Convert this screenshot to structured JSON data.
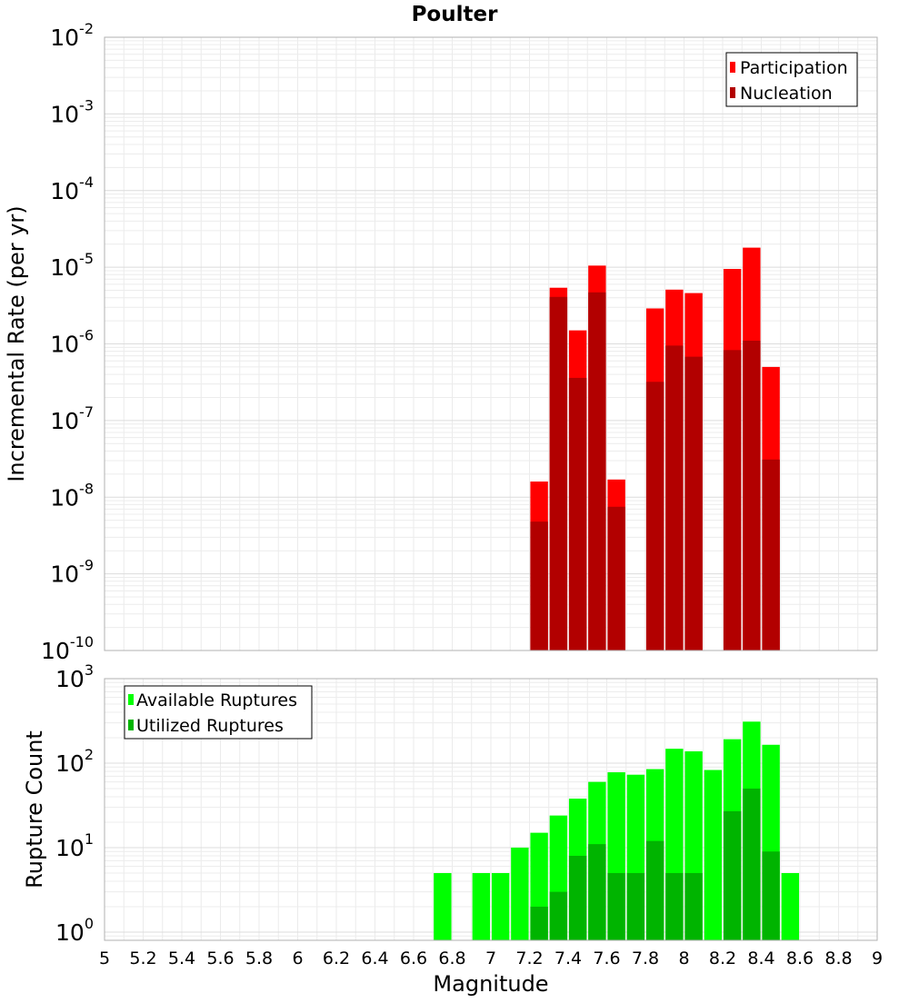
{
  "chart_data": [
    {
      "type": "bar",
      "title": "Poulter",
      "xlabel": "",
      "ylabel": "Incremental Rate (per yr)",
      "yscale": "log",
      "xlim": [
        5,
        9
      ],
      "ylim": [
        1e-10,
        0.01
      ],
      "y_tick_exponents": [
        -10,
        -9,
        -8,
        -7,
        -6,
        -5,
        -4,
        -3,
        -2
      ],
      "grid": true,
      "legend_position": "top-right",
      "series": [
        {
          "name": "Participation",
          "color": "#ff0000",
          "x": [
            7.25,
            7.35,
            7.45,
            7.55,
            7.65,
            7.85,
            7.95,
            8.05,
            8.25,
            8.35,
            8.45
          ],
          "values": [
            1.6e-08,
            5.4e-06,
            1.5e-06,
            1.05e-05,
            1.7e-08,
            2.9e-06,
            5.1e-06,
            4.6e-06,
            9.5e-06,
            1.8e-05,
            5e-07
          ]
        },
        {
          "name": "Nucleation",
          "color": "#b20000",
          "x": [
            7.25,
            7.35,
            7.45,
            7.55,
            7.65,
            7.85,
            7.95,
            8.05,
            8.25,
            8.35,
            8.45
          ],
          "values": [
            4.8e-09,
            4.1e-06,
            3.6e-07,
            4.7e-06,
            7.5e-09,
            3.2e-07,
            9.5e-07,
            6.8e-07,
            8.3e-07,
            1.1e-06,
            3.1e-08
          ]
        }
      ]
    },
    {
      "type": "bar",
      "title": "",
      "xlabel": "Magnitude",
      "ylabel": "Rupture Count",
      "yscale": "log",
      "xlim": [
        5,
        9
      ],
      "ylim": [
        0.8,
        1000
      ],
      "y_tick_exponents": [
        0,
        1,
        2,
        3
      ],
      "x_ticks": [
        "5",
        "5.2",
        "5.4",
        "5.6",
        "5.8",
        "6",
        "6.2",
        "6.4",
        "6.6",
        "6.8",
        "7",
        "7.2",
        "7.4",
        "7.6",
        "7.8",
        "8",
        "8.2",
        "8.4",
        "8.6",
        "8.8",
        "9"
      ],
      "grid": true,
      "legend_position": "top-left",
      "series": [
        {
          "name": "Available Ruptures",
          "color": "#00ff00",
          "x": [
            6.75,
            6.95,
            7.05,
            7.15,
            7.25,
            7.35,
            7.45,
            7.55,
            7.65,
            7.75,
            7.85,
            7.95,
            8.05,
            8.15,
            8.25,
            8.35,
            8.45,
            8.55
          ],
          "values": [
            5,
            5,
            5,
            10,
            15,
            24,
            38,
            60,
            78,
            73,
            85,
            148,
            138,
            83,
            192,
            310,
            165,
            5
          ]
        },
        {
          "name": "Utilized Ruptures",
          "color": "#00b400",
          "x": [
            7.25,
            7.35,
            7.45,
            7.55,
            7.65,
            7.75,
            7.85,
            7.95,
            8.05,
            8.25,
            8.35,
            8.45
          ],
          "values": [
            2,
            3,
            8,
            11,
            5,
            5,
            12,
            5,
            5,
            27,
            50,
            9
          ]
        }
      ]
    }
  ]
}
